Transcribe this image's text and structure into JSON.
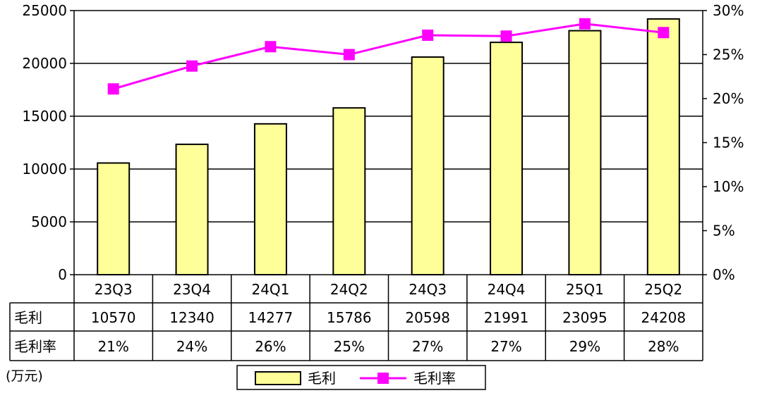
{
  "chart_data": {
    "type": "bar+line",
    "categories": [
      "23Q3",
      "23Q4",
      "24Q1",
      "24Q2",
      "24Q3",
      "24Q4",
      "25Q1",
      "25Q2"
    ],
    "series": [
      {
        "name": "毛利",
        "type": "bar",
        "axis": "left",
        "values": [
          10570,
          12340,
          14277,
          15786,
          20598,
          21991,
          23095,
          24208
        ],
        "color": "#ffff99",
        "edge_color": "#000000"
      },
      {
        "name": "毛利率",
        "type": "line",
        "axis": "right",
        "values": [
          21.1,
          23.7,
          25.9,
          25.0,
          27.2,
          27.1,
          28.5,
          27.5
        ],
        "color": "#ff00ff"
      }
    ],
    "table_rows": [
      {
        "label": "毛利",
        "values": [
          "10570",
          "12340",
          "14277",
          "15786",
          "20598",
          "21991",
          "23095",
          "24208"
        ]
      },
      {
        "label": "毛利率",
        "values": [
          "21%",
          "24%",
          "26%",
          "25%",
          "27%",
          "27%",
          "29%",
          "28%"
        ]
      }
    ],
    "y_left": {
      "min": 0,
      "max": 25000,
      "ticks": [
        "0",
        "5000",
        "10000",
        "15000",
        "20000",
        "25000"
      ]
    },
    "y_right": {
      "min": 0,
      "max": 30,
      "ticks": [
        "0%",
        "5%",
        "10%",
        "15%",
        "20%",
        "25%",
        "30%"
      ]
    },
    "unit_label": "(万元)",
    "grid": true,
    "legend_position": "bottom-center",
    "title": "",
    "xlabel": "",
    "ylabel": ""
  }
}
